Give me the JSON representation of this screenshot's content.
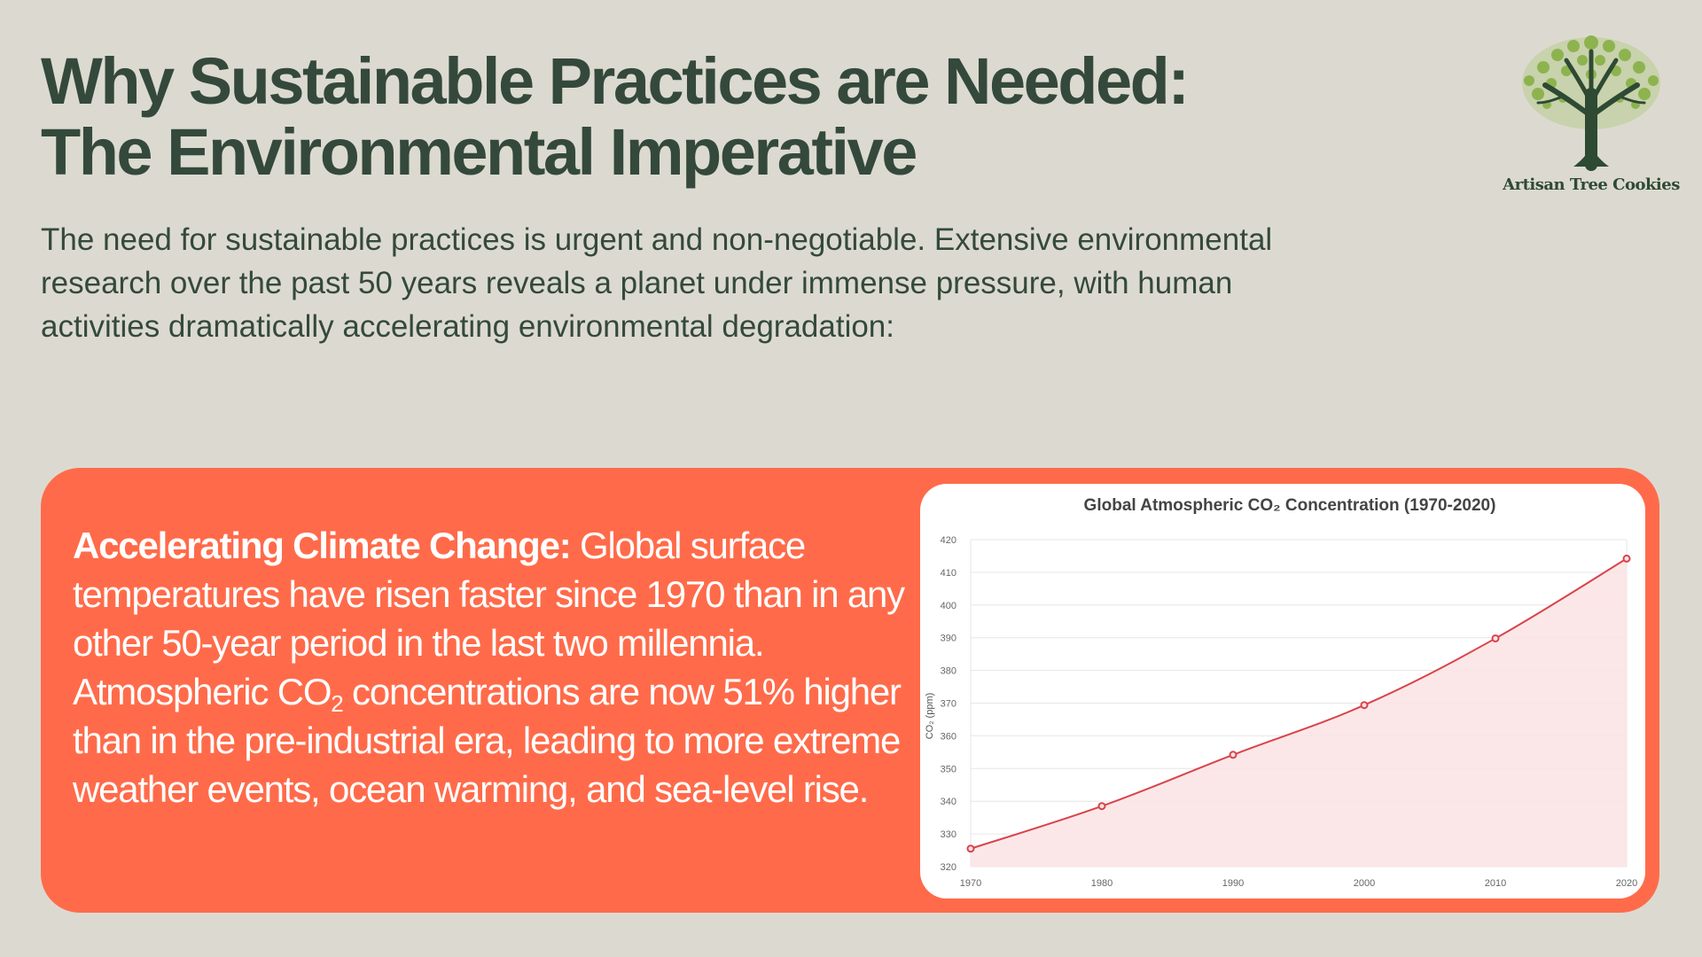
{
  "title": {
    "line1": "Why Sustainable Practices are Needed:",
    "line2": "The Environmental Imperative"
  },
  "intro": "The need for sustainable practices is urgent and non-negotiable. Extensive environmental research over the past 50 years reveals a planet under immense pressure, with human activities dramatically accelerating environmental degradation:",
  "logo": {
    "icon": "tree-icon",
    "brand": "Artisan Tree Cookies"
  },
  "colors": {
    "background": "#dcdad0",
    "heading": "#34493b",
    "card": "#ff6b4a",
    "line": "#d9434b",
    "fill": "#fbe3e4"
  },
  "card": {
    "heading": "Accelerating Climate Change:",
    "body_1": " Global surface temperatures have risen faster since 1970 than in any other 50-year period in the last two millennia. Atmospheric CO",
    "body_sub": "2",
    "body_2": " concentrations are now 51% higher than in the pre-industrial era, leading to more extreme weather events, ocean warming, and sea-level rise."
  },
  "chart_data": {
    "type": "area",
    "title": "Global Atmospheric CO₂ Concentration (1970-2020)",
    "ylabel": "CO₂ (ppm)",
    "xlabel": "",
    "x": [
      "1970",
      "1980",
      "1990",
      "2000",
      "2010",
      "2020"
    ],
    "series": [
      {
        "values": [
          325.5,
          338.5,
          354.2,
          369.4,
          389.8,
          414.2
        ]
      }
    ],
    "ylim": [
      320,
      420
    ],
    "yticks": [
      320,
      330,
      340,
      350,
      360,
      370,
      380,
      390,
      400,
      410,
      420
    ],
    "grid": true,
    "legend": "none"
  }
}
